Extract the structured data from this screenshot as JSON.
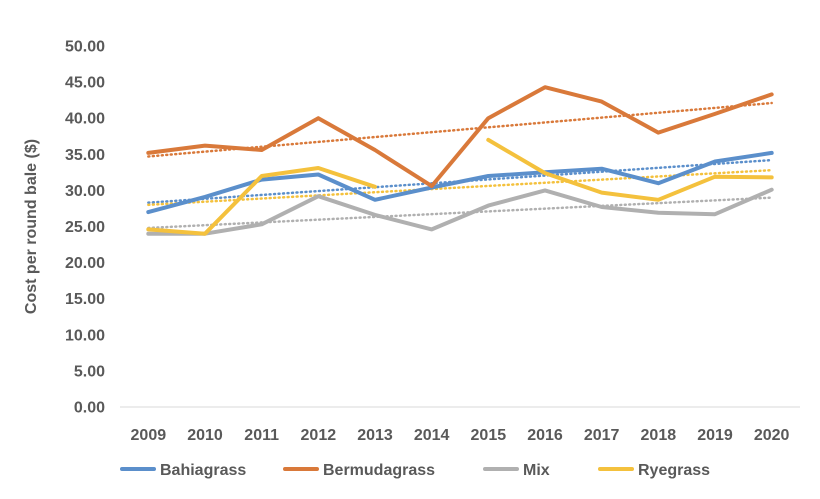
{
  "chart_data": {
    "type": "line",
    "title": "",
    "xlabel": "",
    "ylabel": "Cost per round bale ($)",
    "ylim": [
      0,
      50
    ],
    "ytick_step": 5,
    "ytick_decimals": 2,
    "grid": false,
    "legend_position": "bottom",
    "categories": [
      "2009",
      "2010",
      "2011",
      "2012",
      "2013",
      "2014",
      "2015",
      "2016",
      "2017",
      "2018",
      "2019",
      "2020"
    ],
    "series": [
      {
        "name": "Bahiagrass",
        "color": "#5B8FCB",
        "values": [
          27.0,
          29.1,
          31.5,
          32.2,
          28.7,
          30.4,
          32.0,
          32.5,
          33.0,
          31.0,
          34.0,
          35.2
        ],
        "trendline": [
          28.3,
          34.2
        ]
      },
      {
        "name": "Bermudagrass",
        "color": "#D9793A",
        "values": [
          35.2,
          36.2,
          35.6,
          40.0,
          35.6,
          30.6,
          40.0,
          44.3,
          42.3,
          38.0,
          40.6,
          43.3
        ],
        "trendline": [
          34.7,
          42.1
        ]
      },
      {
        "name": "Mix",
        "color": "#B0B0B0",
        "values": [
          24.0,
          24.0,
          25.3,
          29.2,
          26.6,
          24.6,
          27.9,
          30.0,
          27.7,
          26.9,
          26.7,
          30.1
        ],
        "trendline": [
          24.8,
          29.0
        ]
      },
      {
        "name": "Ryegrass",
        "color": "#F4C13D",
        "values": [
          24.6,
          24.0,
          32.0,
          33.1,
          30.5,
          null,
          37.0,
          32.4,
          29.7,
          28.7,
          31.9,
          31.8
        ],
        "trendline": [
          28.0,
          32.8
        ]
      }
    ]
  }
}
